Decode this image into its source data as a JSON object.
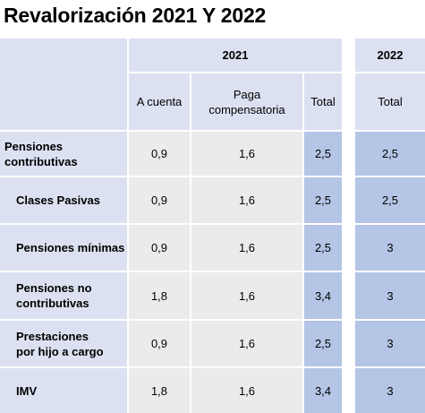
{
  "title": "Revalorización 2021 Y 2022",
  "header": {
    "year_2021": "2021",
    "year_2022": "2022",
    "col_a_cuenta": "A cuenta",
    "col_paga": "Paga compensatoria",
    "col_total_2021": "Total",
    "col_total_2022": "Total"
  },
  "rows": [
    {
      "label": "Pensiones contributivas",
      "a_cuenta": "0,9",
      "paga": "1,6",
      "total_2021": "2,5",
      "total_2022": "2,5"
    },
    {
      "label": "Clases Pasivas",
      "a_cuenta": "0,9",
      "paga": "1,6",
      "total_2021": "2,5",
      "total_2022": "2,5"
    },
    {
      "label": "Pensiones mínimas",
      "a_cuenta": "0,9",
      "paga": "1,6",
      "total_2021": "2,5",
      "total_2022": "3"
    },
    {
      "label": "Pensiones no contributivas",
      "a_cuenta": "1,8",
      "paga": "1,6",
      "total_2021": "3,4",
      "total_2022": "3"
    },
    {
      "label": "Prestaciones por hijo a cargo",
      "a_cuenta": "0,9",
      "paga": "1,6",
      "total_2021": "2,5",
      "total_2022": "3"
    },
    {
      "label": "IMV",
      "a_cuenta": "1,8",
      "paga": "1,6",
      "total_2021": "3,4",
      "total_2022": "3"
    }
  ]
}
